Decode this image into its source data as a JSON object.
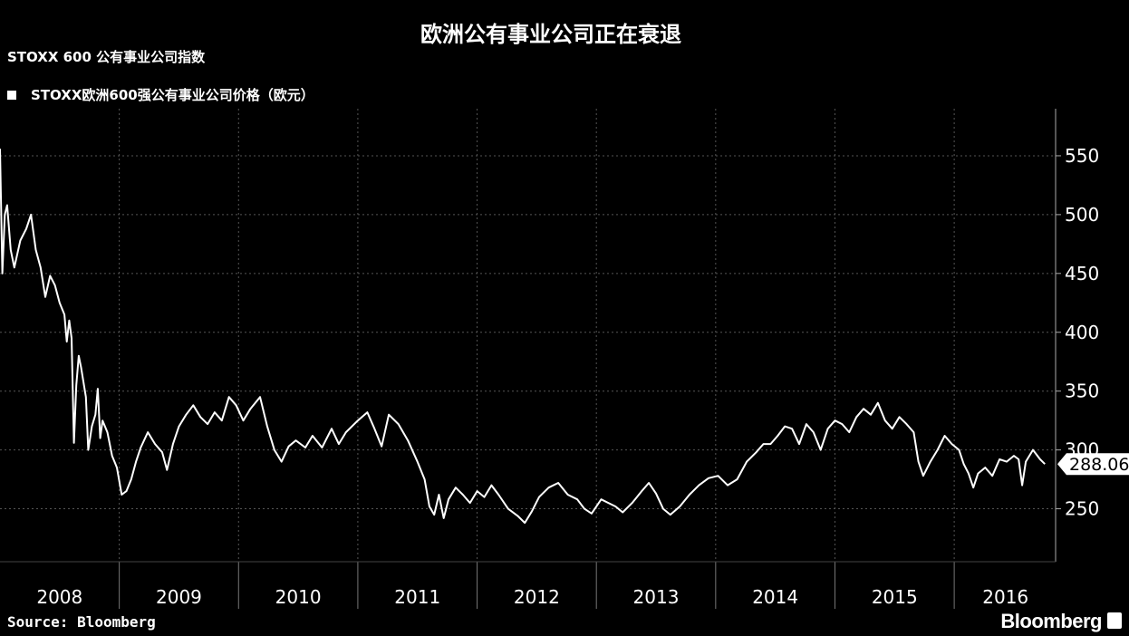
{
  "chart_data": {
    "type": "line",
    "title": "欧洲公有事业公司正在衰退",
    "subtitle": "STOXX 600 公有事业公司指数",
    "series": [
      {
        "name": "STOXX欧洲600强公有事业公司价格（欧元）",
        "points": [
          [
            2008.0,
            556
          ],
          [
            2008.02,
            450
          ],
          [
            2008.04,
            500
          ],
          [
            2008.06,
            508
          ],
          [
            2008.09,
            470
          ],
          [
            2008.12,
            455
          ],
          [
            2008.17,
            478
          ],
          [
            2008.22,
            488
          ],
          [
            2008.26,
            500
          ],
          [
            2008.3,
            470
          ],
          [
            2008.34,
            455
          ],
          [
            2008.38,
            430
          ],
          [
            2008.42,
            448
          ],
          [
            2008.46,
            440
          ],
          [
            2008.5,
            425
          ],
          [
            2008.54,
            415
          ],
          [
            2008.56,
            392
          ],
          [
            2008.58,
            410
          ],
          [
            2008.6,
            395
          ],
          [
            2008.62,
            306
          ],
          [
            2008.64,
            355
          ],
          [
            2008.66,
            380
          ],
          [
            2008.68,
            370
          ],
          [
            2008.72,
            345
          ],
          [
            2008.74,
            300
          ],
          [
            2008.77,
            320
          ],
          [
            2008.8,
            330
          ],
          [
            2008.82,
            352
          ],
          [
            2008.84,
            310
          ],
          [
            2008.86,
            325
          ],
          [
            2008.9,
            315
          ],
          [
            2008.94,
            295
          ],
          [
            2008.98,
            285
          ],
          [
            2009.02,
            262
          ],
          [
            2009.06,
            265
          ],
          [
            2009.1,
            275
          ],
          [
            2009.14,
            290
          ],
          [
            2009.18,
            302
          ],
          [
            2009.24,
            315
          ],
          [
            2009.3,
            305
          ],
          [
            2009.36,
            298
          ],
          [
            2009.4,
            283
          ],
          [
            2009.45,
            305
          ],
          [
            2009.5,
            320
          ],
          [
            2009.56,
            330
          ],
          [
            2009.62,
            338
          ],
          [
            2009.68,
            328
          ],
          [
            2009.74,
            322
          ],
          [
            2009.8,
            332
          ],
          [
            2009.86,
            325
          ],
          [
            2009.92,
            345
          ],
          [
            2009.98,
            338
          ],
          [
            2010.04,
            325
          ],
          [
            2010.1,
            335
          ],
          [
            2010.18,
            345
          ],
          [
            2010.24,
            320
          ],
          [
            2010.3,
            300
          ],
          [
            2010.36,
            290
          ],
          [
            2010.42,
            303
          ],
          [
            2010.48,
            308
          ],
          [
            2010.56,
            302
          ],
          [
            2010.62,
            312
          ],
          [
            2010.7,
            302
          ],
          [
            2010.78,
            318
          ],
          [
            2010.84,
            305
          ],
          [
            2010.9,
            315
          ],
          [
            2011.0,
            325
          ],
          [
            2011.08,
            332
          ],
          [
            2011.14,
            318
          ],
          [
            2011.2,
            303
          ],
          [
            2011.26,
            330
          ],
          [
            2011.34,
            322
          ],
          [
            2011.42,
            308
          ],
          [
            2011.5,
            290
          ],
          [
            2011.56,
            275
          ],
          [
            2011.6,
            252
          ],
          [
            2011.64,
            245
          ],
          [
            2011.68,
            262
          ],
          [
            2011.72,
            242
          ],
          [
            2011.76,
            258
          ],
          [
            2011.82,
            268
          ],
          [
            2011.88,
            262
          ],
          [
            2011.94,
            255
          ],
          [
            2012.0,
            265
          ],
          [
            2012.06,
            260
          ],
          [
            2012.12,
            270
          ],
          [
            2012.18,
            262
          ],
          [
            2012.26,
            250
          ],
          [
            2012.34,
            244
          ],
          [
            2012.4,
            238
          ],
          [
            2012.46,
            248
          ],
          [
            2012.52,
            260
          ],
          [
            2012.6,
            268
          ],
          [
            2012.68,
            272
          ],
          [
            2012.76,
            262
          ],
          [
            2012.84,
            258
          ],
          [
            2012.9,
            250
          ],
          [
            2012.96,
            246
          ],
          [
            2013.04,
            258
          ],
          [
            2013.1,
            255
          ],
          [
            2013.16,
            252
          ],
          [
            2013.22,
            247
          ],
          [
            2013.3,
            255
          ],
          [
            2013.38,
            265
          ],
          [
            2013.44,
            272
          ],
          [
            2013.5,
            263
          ],
          [
            2013.56,
            250
          ],
          [
            2013.62,
            245
          ],
          [
            2013.7,
            252
          ],
          [
            2013.78,
            262
          ],
          [
            2013.86,
            270
          ],
          [
            2013.94,
            276
          ],
          [
            2014.02,
            278
          ],
          [
            2014.1,
            270
          ],
          [
            2014.18,
            275
          ],
          [
            2014.26,
            290
          ],
          [
            2014.34,
            298
          ],
          [
            2014.4,
            305
          ],
          [
            2014.46,
            305
          ],
          [
            2014.52,
            312
          ],
          [
            2014.58,
            320
          ],
          [
            2014.64,
            318
          ],
          [
            2014.7,
            305
          ],
          [
            2014.76,
            322
          ],
          [
            2014.82,
            315
          ],
          [
            2014.88,
            300
          ],
          [
            2014.94,
            318
          ],
          [
            2015.0,
            325
          ],
          [
            2015.06,
            322
          ],
          [
            2015.12,
            315
          ],
          [
            2015.18,
            328
          ],
          [
            2015.24,
            335
          ],
          [
            2015.3,
            330
          ],
          [
            2015.36,
            340
          ],
          [
            2015.42,
            325
          ],
          [
            2015.48,
            318
          ],
          [
            2015.54,
            328
          ],
          [
            2015.6,
            322
          ],
          [
            2015.66,
            315
          ],
          [
            2015.7,
            290
          ],
          [
            2015.74,
            278
          ],
          [
            2015.8,
            290
          ],
          [
            2015.86,
            300
          ],
          [
            2015.92,
            312
          ],
          [
            2015.98,
            305
          ],
          [
            2016.04,
            300
          ],
          [
            2016.08,
            288
          ],
          [
            2016.12,
            280
          ],
          [
            2016.16,
            268
          ],
          [
            2016.2,
            280
          ],
          [
            2016.26,
            285
          ],
          [
            2016.32,
            278
          ],
          [
            2016.38,
            292
          ],
          [
            2016.44,
            290
          ],
          [
            2016.5,
            295
          ],
          [
            2016.54,
            292
          ],
          [
            2016.57,
            270
          ],
          [
            2016.6,
            290
          ],
          [
            2016.66,
            300
          ],
          [
            2016.72,
            292
          ],
          [
            2016.76,
            288
          ]
        ]
      }
    ],
    "last_value_label": "288.06",
    "x_ticks": [
      "2008",
      "2009",
      "2010",
      "2011",
      "2012",
      "2013",
      "2014",
      "2015",
      "2016"
    ],
    "y_ticks": [
      "250",
      "300",
      "350",
      "400",
      "450",
      "500",
      "550"
    ],
    "xlim": [
      2008.0,
      2016.85
    ],
    "ylim": [
      205,
      590
    ],
    "grid": true,
    "legend_position": "top-left",
    "colors": {
      "background": "#000000",
      "line": "#ffffff",
      "grid": "#555555",
      "axis": "#aaaaaa"
    }
  },
  "footer": {
    "source": "Source: Bloomberg",
    "brand": "Bloomberg"
  }
}
